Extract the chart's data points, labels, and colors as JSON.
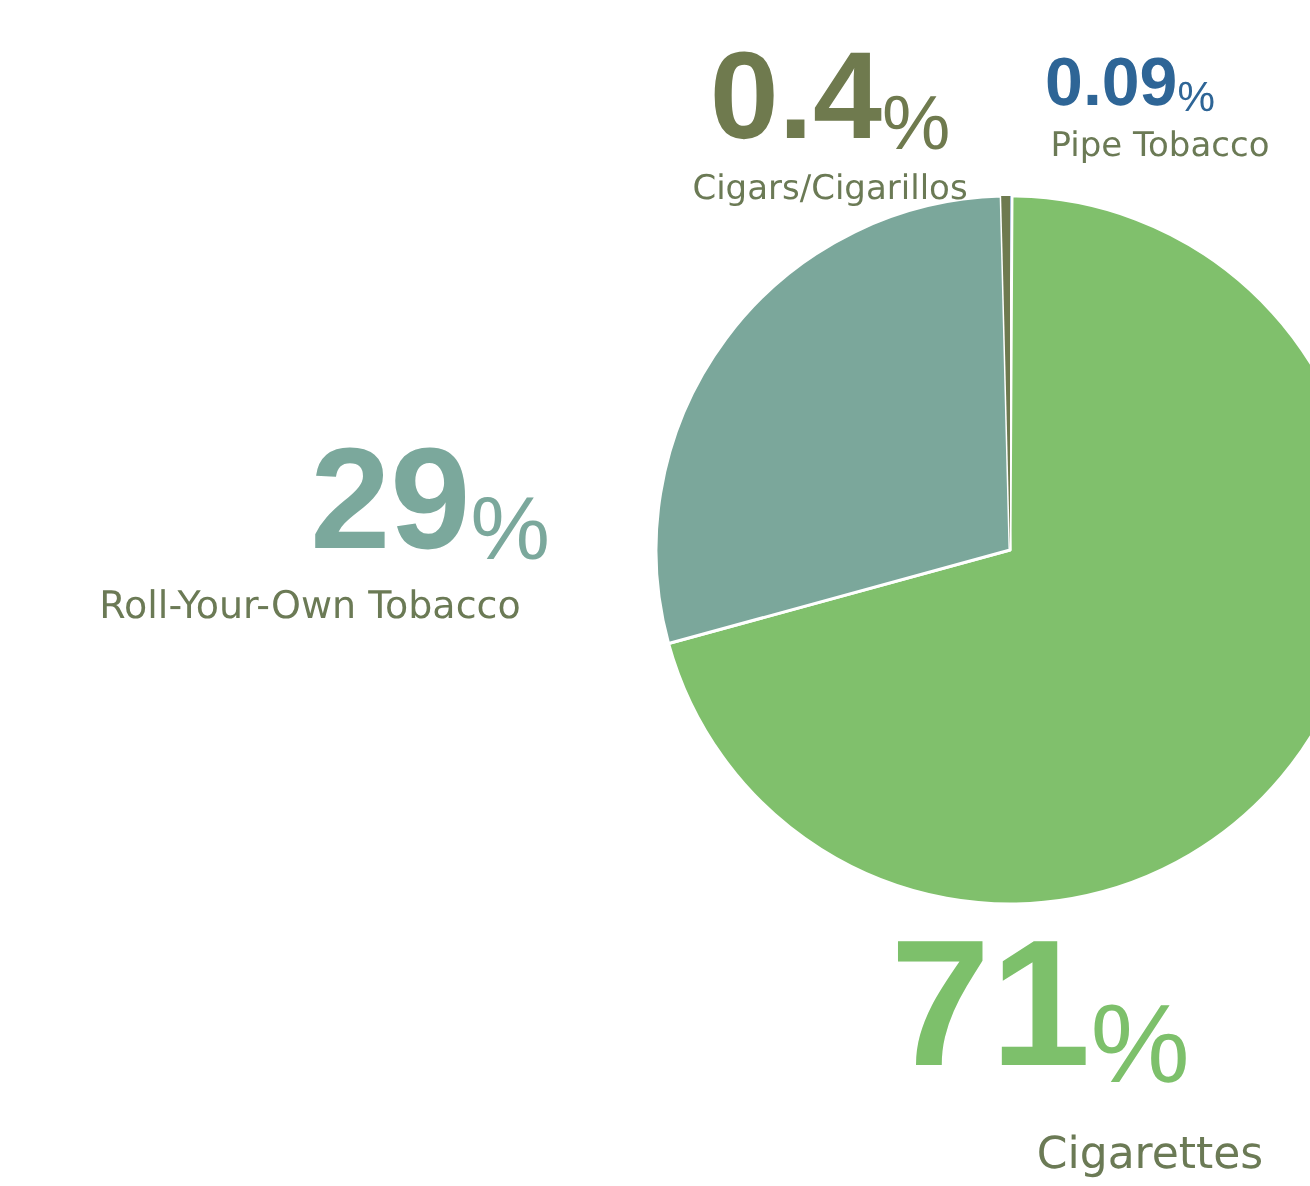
{
  "chart_data": {
    "type": "pie",
    "categories": [
      "Pipe Tobacco",
      "Cigarettes",
      "Roll-Your-Own Tobacco",
      "Cigars/Cigarillos"
    ],
    "values": [
      0.09,
      71,
      29,
      0.4
    ],
    "colors": [
      "#3f73a9",
      "#80c06c",
      "#7ba79b",
      "#6e7a4f"
    ],
    "value_labels": [
      "0.09%",
      "71%",
      "29%",
      "0.4%"
    ],
    "legend": false
  }
}
